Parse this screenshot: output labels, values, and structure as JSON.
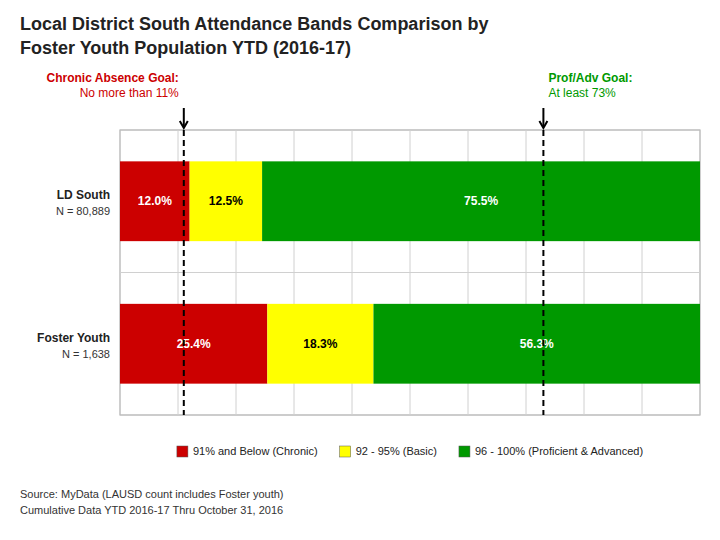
{
  "chart_data": {
    "type": "bar",
    "orientation": "horizontal",
    "stacked": true,
    "title": "Local District South Attendance Bands Comparison by",
    "subtitle": "Foster Youth Population YTD (2016-17)",
    "categories": [
      "LD South",
      "Foster Youth"
    ],
    "category_notes": [
      "N = 80,889",
      "N = 1,638"
    ],
    "series": [
      {
        "name": "91% and Below (Chronic)",
        "color": "#CC0000",
        "values": [
          12.0,
          25.4
        ],
        "value_labels": [
          "12.0%",
          "25.4%"
        ]
      },
      {
        "name": "92 - 95% (Basic)",
        "color": "#FFFF00",
        "values": [
          12.5,
          18.3
        ],
        "value_labels": [
          "12.5%",
          "18.3%"
        ]
      },
      {
        "name": "96 - 100% (Proficient & Advanced)",
        "color": "#009900",
        "values": [
          75.5,
          56.3
        ],
        "value_labels": [
          "75.5%",
          "56.3%"
        ]
      }
    ],
    "xlim": [
      0,
      100
    ],
    "xticks": [
      0,
      10,
      20,
      30,
      40,
      50,
      60,
      70,
      80,
      90,
      100
    ],
    "grid": true,
    "tick_labels": false,
    "data_labels": true,
    "legend": "bottom",
    "annotations": [
      {
        "x": 11,
        "text": [
          "Chronic Absence Goal:",
          "No more than 11%"
        ],
        "color": "#CC0000",
        "align": "left"
      },
      {
        "x": 73,
        "text": [
          "Prof/Adv Goal:",
          "At least 73%"
        ],
        "color": "#009900",
        "align": "right"
      }
    ],
    "source": [
      "Source: MyData (LAUSD count includes Foster youth)",
      "Cumulative Data YTD 2016-17 Thru October 31, 2016"
    ]
  }
}
